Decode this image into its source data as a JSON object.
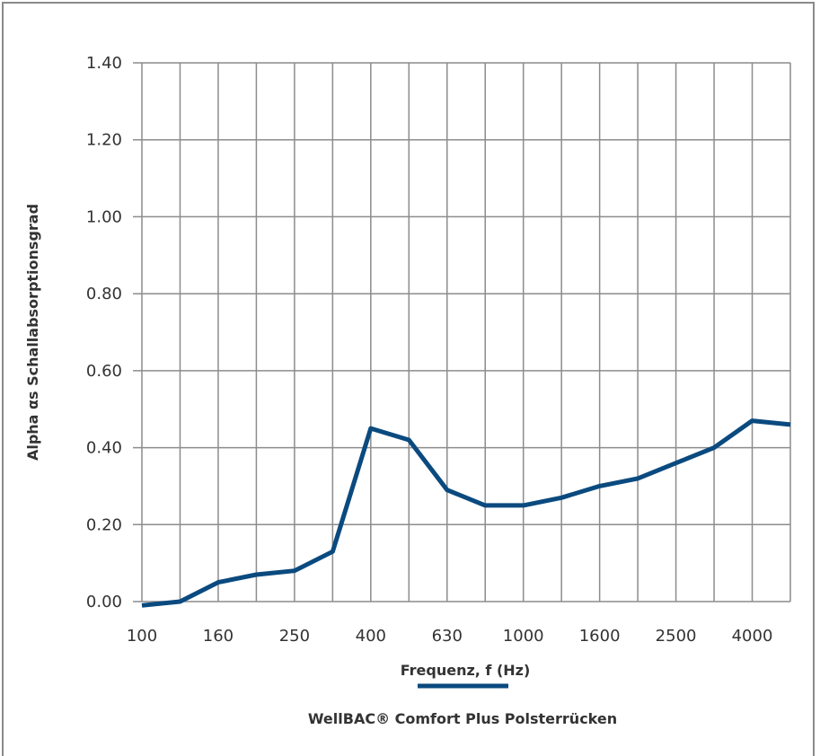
{
  "chart_data": {
    "type": "line",
    "xlabel": "Frequenz, f (Hz)",
    "ylabel": "Alpha αs Schallabsorptionsgrad",
    "ylim": [
      0,
      1.4
    ],
    "yticks": [
      "0.00",
      "0.20",
      "0.40",
      "0.60",
      "0.80",
      "1.00",
      "1.20",
      "1.40"
    ],
    "x": [
      100,
      125,
      160,
      200,
      250,
      315,
      400,
      500,
      630,
      800,
      1000,
      1250,
      1600,
      2000,
      2500,
      3150,
      4000,
      5000
    ],
    "xtick_labels": [
      "100",
      "160",
      "250",
      "400",
      "630",
      "1000",
      "1600",
      "2500",
      "4000"
    ],
    "xtick_labeled_index": [
      0,
      2,
      4,
      6,
      8,
      10,
      12,
      14,
      16
    ],
    "grid": true,
    "legend_position": "bottom-center",
    "series": [
      {
        "name": "WellBAC® Comfort Plus Polsterrücken",
        "color": "#0a4a7f",
        "values": [
          -0.01,
          0.0,
          0.05,
          0.07,
          0.08,
          0.13,
          0.45,
          0.42,
          0.29,
          0.25,
          0.25,
          0.27,
          0.3,
          0.32,
          0.36,
          0.4,
          0.47,
          0.46
        ]
      }
    ]
  }
}
